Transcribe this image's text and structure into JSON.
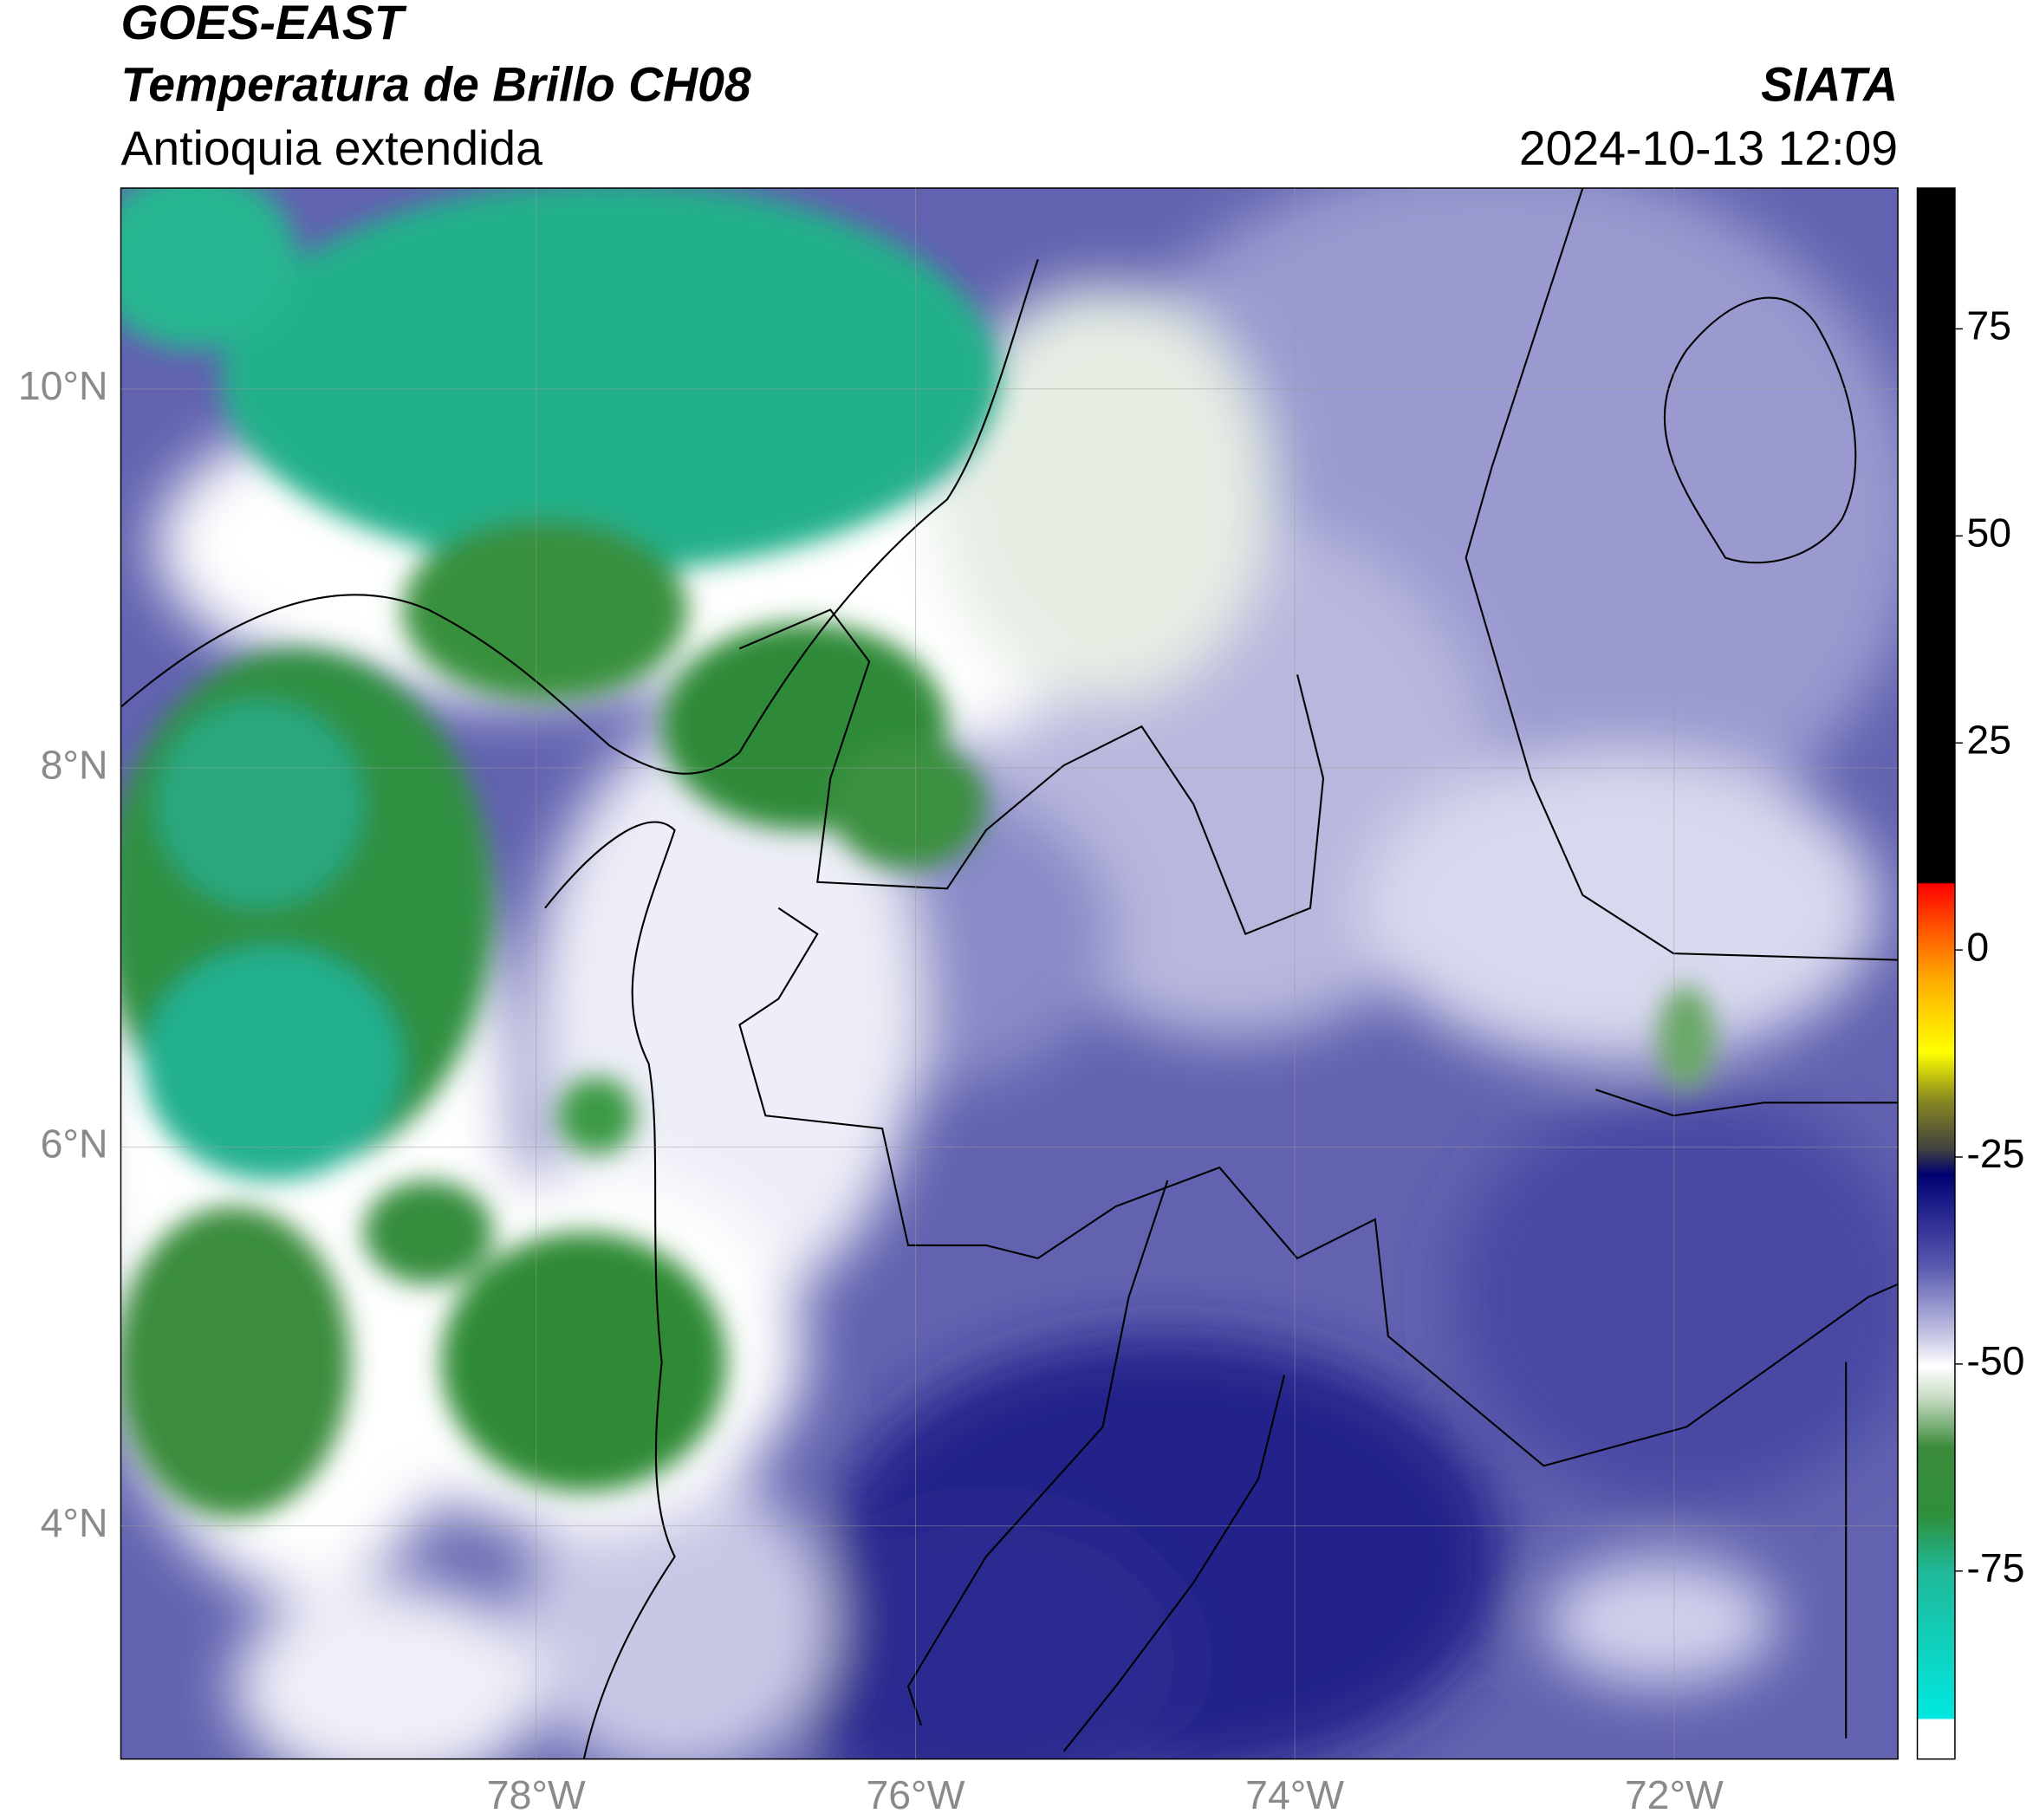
{
  "header": {
    "title": "GOES-EAST",
    "subtitle": "Temperatura de Brillo CH08",
    "region": "Antioquia extendida",
    "source": "SIATA",
    "datetime": "2024-10-13 12:09"
  },
  "map": {
    "xlim": [
      -80.19,
      -70.82
    ],
    "ylim": [
      2.77,
      11.06
    ],
    "xticks": [
      {
        "value": -78,
        "label": "78°W"
      },
      {
        "value": -76,
        "label": "76°W"
      },
      {
        "value": -74,
        "label": "74°W"
      },
      {
        "value": -72,
        "label": "72°W"
      }
    ],
    "yticks": [
      {
        "value": 4,
        "label": "4°N"
      },
      {
        "value": 6,
        "label": "6°N"
      },
      {
        "value": 8,
        "label": "8°N"
      },
      {
        "value": 10,
        "label": "10°N"
      }
    ],
    "grid": true
  },
  "colorbar": {
    "lim": [
      -97.7,
      92
    ],
    "ticks": [
      75,
      50,
      25,
      0,
      -25,
      -50,
      -75
    ]
  }
}
